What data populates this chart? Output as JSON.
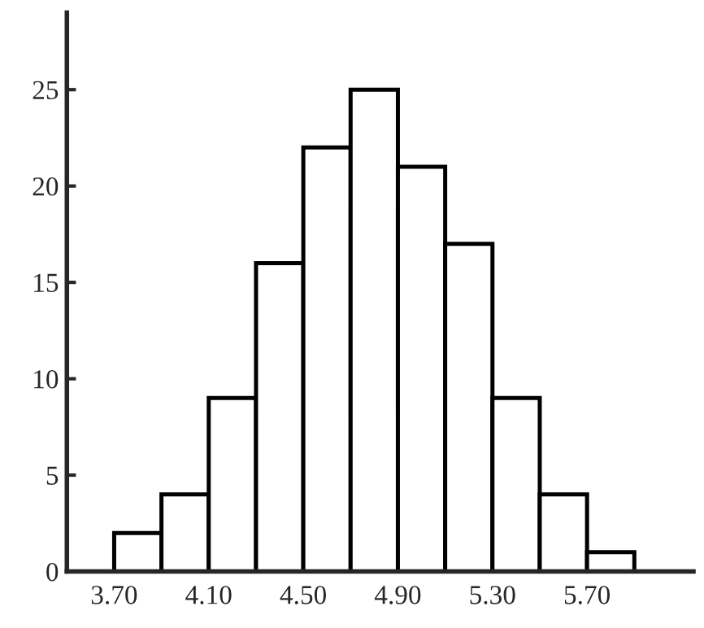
{
  "chart_data": {
    "type": "histogram",
    "bins": [
      3.7,
      3.9,
      4.1,
      4.3,
      4.5,
      4.7,
      4.9,
      5.1,
      5.3,
      5.5,
      5.7,
      5.9
    ],
    "values": [
      2,
      4,
      9,
      16,
      22,
      25,
      21,
      17,
      9,
      4,
      1
    ],
    "color": "#ffffff",
    "xlim": [
      3.5,
      6.15
    ],
    "ylim": [
      0,
      29
    ],
    "xticks": [
      {
        "value": 3.7,
        "label": "3.70"
      },
      {
        "value": 4.1,
        "label": "4.10"
      },
      {
        "value": 4.5,
        "label": "4.50"
      },
      {
        "value": 4.9,
        "label": "4.90"
      },
      {
        "value": 5.3,
        "label": "5.30"
      },
      {
        "value": 5.7,
        "label": "5.70"
      }
    ],
    "yticks": [
      0,
      5,
      10,
      15,
      20,
      25
    ],
    "grid": false
  }
}
